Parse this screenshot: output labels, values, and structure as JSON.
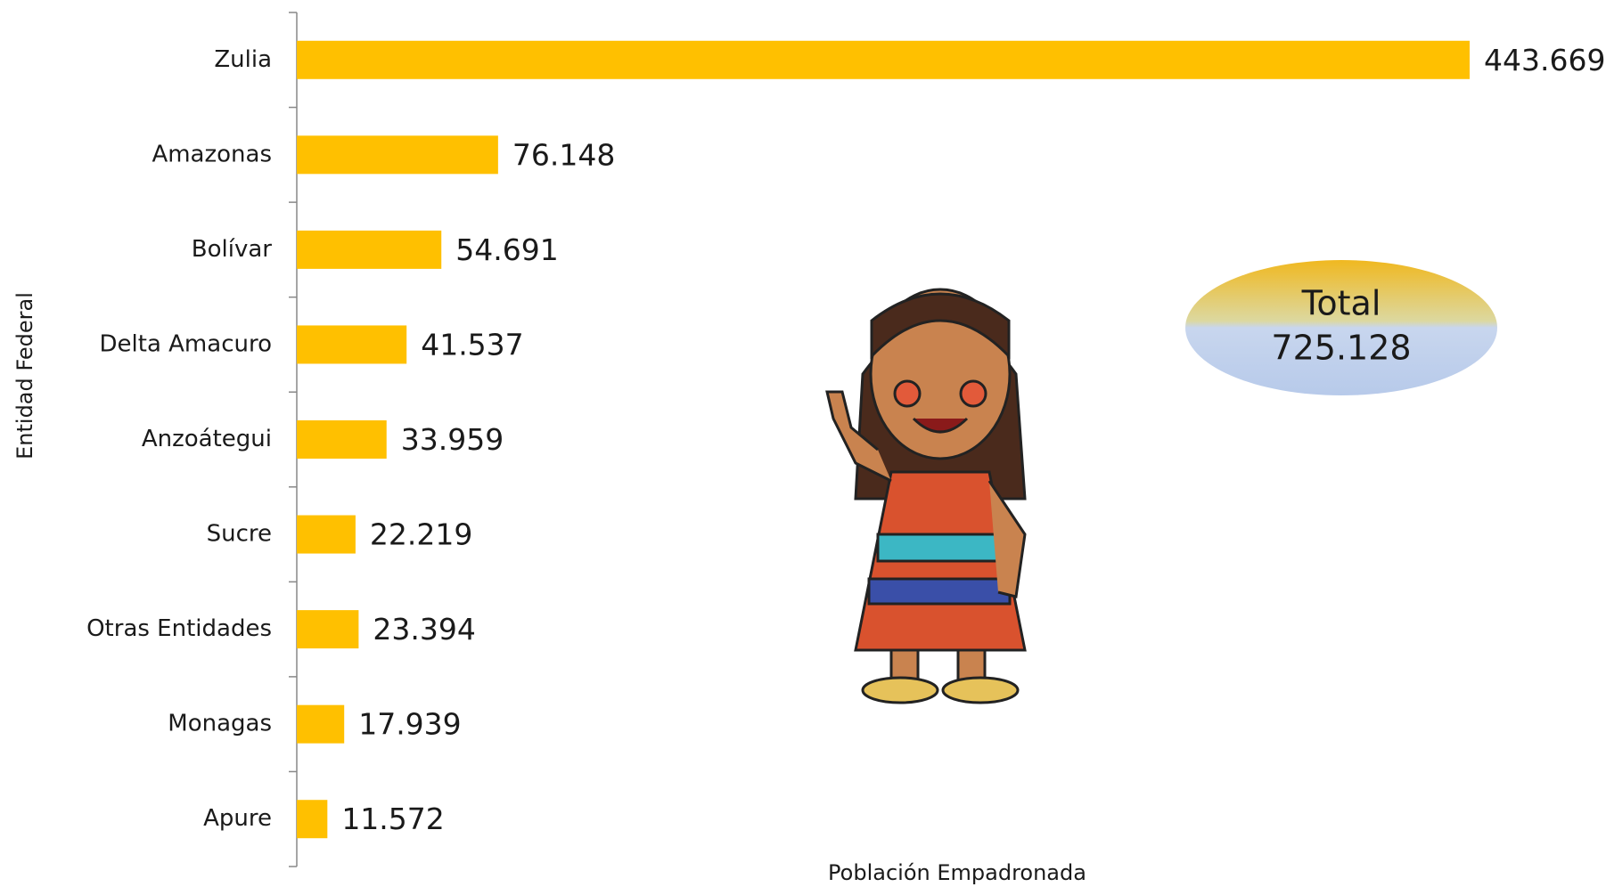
{
  "chart_data": {
    "type": "bar",
    "orientation": "horizontal",
    "categories": [
      "Zulia",
      "Amazonas",
      "Bolívar",
      "Delta Amacuro",
      "Anzoátegui",
      "Sucre",
      "Otras Entidades",
      "Monagas",
      "Apure"
    ],
    "values": [
      443669,
      76148,
      54691,
      41537,
      33959,
      22219,
      23394,
      17939,
      11572
    ],
    "value_labels": [
      "443.669",
      "76.148",
      "54.691",
      "41.537",
      "33.959",
      "22.219",
      "23.394",
      "17.939",
      "11.572"
    ],
    "color": "#ffc000",
    "xlim": [
      0,
      443669
    ],
    "x_label": "Población Empadronada",
    "y_label": "Entidad Federal",
    "annotation": {
      "title": "Total",
      "text": "725.128"
    }
  }
}
